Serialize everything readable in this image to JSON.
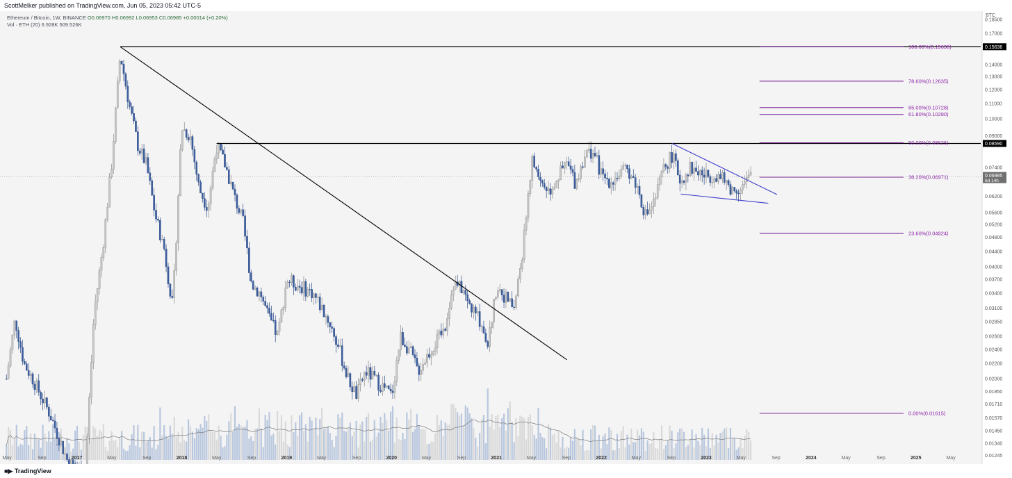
{
  "header": {
    "published": "ScottMelker published on TradingView.com, Jun 05, 2023 05:42 UTC-5",
    "symbol_line": "Ethereum / Bitcoin, 1W, BINANCE",
    "ohlc": "O0.06970 H0.06992 L0.06953 C0.06985 +0.00014 (+0.20%)",
    "volume_line": "Vol · ETH (20)",
    "volume_values": "6.928K 509.526K"
  },
  "footer": {
    "brand": "TradingView"
  },
  "chart_data": {
    "type": "candlestick",
    "symbol": "Ethereum / Bitcoin",
    "timeframe": "1W",
    "exchange": "BINANCE",
    "price_axis_label": "BTC",
    "price_ticks": [
      "0.18500",
      "0.17000",
      "0.15636",
      "0.14000",
      "0.13000",
      "0.12000",
      "0.11000",
      "0.10000",
      "0.09000",
      "0.08590",
      "0.07400",
      "0.06985",
      "0.06200",
      "0.05600",
      "0.05200",
      "0.04800",
      "0.04400",
      "0.04000",
      "0.03700",
      "0.03400",
      "0.03100",
      "0.02850",
      "0.02600",
      "0.02400",
      "0.02200",
      "0.02000",
      "0.01850",
      "0.01710",
      "0.01570",
      "0.01450",
      "0.01340",
      "0.01245"
    ],
    "price_tick_values": [
      0.185,
      0.17,
      0.15636,
      0.14,
      0.13,
      0.12,
      0.11,
      0.1,
      0.09,
      0.0859,
      0.074,
      0.06985,
      0.062,
      0.056,
      0.052,
      0.048,
      0.044,
      0.04,
      0.037,
      0.034,
      0.031,
      0.0285,
      0.026,
      0.024,
      0.022,
      0.02,
      0.0185,
      0.0171,
      0.0157,
      0.0145,
      0.0134,
      0.01245
    ],
    "time_ticks": [
      "May",
      "Sep",
      "2017",
      "May",
      "Sep",
      "2018",
      "May",
      "Sep",
      "2019",
      "May",
      "Sep",
      "2020",
      "May",
      "Sep",
      "2021",
      "May",
      "Sep",
      "2022",
      "May",
      "Sep",
      "2023",
      "May",
      "Sep",
      "2024",
      "May",
      "Sep",
      "2025",
      "May"
    ],
    "current_price": "0.06985",
    "countdown": "6d 14h",
    "highlight_levels": [
      {
        "label": "0.15636",
        "value": 0.15636
      },
      {
        "label": "0.08590",
        "value": 0.0859
      }
    ],
    "fib_levels": [
      {
        "label": "100.00%(0.15636)",
        "value": 0.15636
      },
      {
        "label": "78.60%(0.12635)",
        "value": 0.12635
      },
      {
        "label": "65.00%(0.10728)",
        "value": 0.10728
      },
      {
        "label": "61.80%(0.10280)",
        "value": 0.1028
      },
      {
        "label": "50.00%(0.08625)",
        "value": 0.08625
      },
      {
        "label": "38.20%(0.06971)",
        "value": 0.06971
      },
      {
        "label": "23.60%(0.04924)",
        "value": 0.04924
      },
      {
        "label": "0.00%(0.01615)",
        "value": 0.01615
      }
    ],
    "horizontal_lines": [
      {
        "from": "2017-06",
        "price": 0.15636
      },
      {
        "from": "2018-05",
        "price": 0.0859
      }
    ],
    "trend_lines": [
      {
        "from": [
          "2017-06",
          0.15636
        ],
        "to": [
          "2021-09",
          0.0225
        ],
        "color": "#000000"
      },
      {
        "from": [
          "2022-09",
          0.0859
        ],
        "to": [
          "2023-09",
          0.0626
        ],
        "color": "#3e3ecc"
      },
      {
        "from": [
          "2022-10",
          0.0628
        ],
        "to": [
          "2023-08",
          0.0593
        ],
        "color": "#3e3ecc"
      }
    ],
    "price_path": [
      [
        "2016-05",
        0.02
      ],
      [
        "2016-06",
        0.029
      ],
      [
        "2016-07",
        0.022
      ],
      [
        "2016-08",
        0.02
      ],
      [
        "2016-10",
        0.016
      ],
      [
        "2016-12",
        0.012
      ],
      [
        "2017-02",
        0.011
      ],
      [
        "2017-03",
        0.03
      ],
      [
        "2017-04",
        0.045
      ],
      [
        "2017-05",
        0.075
      ],
      [
        "2017-06",
        0.15
      ],
      [
        "2017-07",
        0.11
      ],
      [
        "2017-08",
        0.085
      ],
      [
        "2017-09",
        0.075
      ],
      [
        "2017-10",
        0.055
      ],
      [
        "2017-11",
        0.045
      ],
      [
        "2017-12",
        0.031
      ],
      [
        "2018-01",
        0.095
      ],
      [
        "2018-02",
        0.09
      ],
      [
        "2018-03",
        0.065
      ],
      [
        "2018-04",
        0.058
      ],
      [
        "2018-05",
        0.085
      ],
      [
        "2018-06",
        0.075
      ],
      [
        "2018-07",
        0.062
      ],
      [
        "2018-08",
        0.053
      ],
      [
        "2018-09",
        0.036
      ],
      [
        "2018-10",
        0.034
      ],
      [
        "2018-11",
        0.029
      ],
      [
        "2018-12",
        0.026
      ],
      [
        "2019-01",
        0.037
      ],
      [
        "2019-02",
        0.036
      ],
      [
        "2019-03",
        0.035
      ],
      [
        "2019-04",
        0.034
      ],
      [
        "2019-05",
        0.031
      ],
      [
        "2019-06",
        0.028
      ],
      [
        "2019-07",
        0.024
      ],
      [
        "2019-08",
        0.02
      ],
      [
        "2019-09",
        0.018
      ],
      [
        "2019-10",
        0.021
      ],
      [
        "2019-11",
        0.02
      ],
      [
        "2019-12",
        0.019
      ],
      [
        "2020-01",
        0.018
      ],
      [
        "2020-02",
        0.026
      ],
      [
        "2020-03",
        0.024
      ],
      [
        "2020-04",
        0.021
      ],
      [
        "2020-05",
        0.023
      ],
      [
        "2020-06",
        0.025
      ],
      [
        "2020-07",
        0.027
      ],
      [
        "2020-08",
        0.036
      ],
      [
        "2020-09",
        0.035
      ],
      [
        "2020-10",
        0.031
      ],
      [
        "2020-11",
        0.029
      ],
      [
        "2020-12",
        0.025
      ],
      [
        "2021-01",
        0.036
      ],
      [
        "2021-02",
        0.033
      ],
      [
        "2021-03",
        0.031
      ],
      [
        "2021-04",
        0.045
      ],
      [
        "2021-05",
        0.078
      ],
      [
        "2021-06",
        0.068
      ],
      [
        "2021-07",
        0.064
      ],
      [
        "2021-08",
        0.07
      ],
      [
        "2021-09",
        0.076
      ],
      [
        "2021-10",
        0.067
      ],
      [
        "2021-11",
        0.08
      ],
      [
        "2021-12",
        0.082
      ],
      [
        "2022-01",
        0.07
      ],
      [
        "2022-02",
        0.068
      ],
      [
        "2022-03",
        0.071
      ],
      [
        "2022-04",
        0.073
      ],
      [
        "2022-05",
        0.066
      ],
      [
        "2022-06",
        0.055
      ],
      [
        "2022-07",
        0.06
      ],
      [
        "2022-08",
        0.073
      ],
      [
        "2022-09",
        0.08
      ],
      [
        "2022-10",
        0.068
      ],
      [
        "2022-11",
        0.074
      ],
      [
        "2022-12",
        0.072
      ],
      [
        "2023-01",
        0.07
      ],
      [
        "2023-02",
        0.071
      ],
      [
        "2023-03",
        0.068
      ],
      [
        "2023-04",
        0.064
      ],
      [
        "2023-05",
        0.066
      ],
      [
        "2023-06",
        0.06985
      ]
    ],
    "volume": {
      "label": "Vol · ETH (20)",
      "values": [
        "6.928K",
        "509.526K"
      ]
    },
    "grid": false
  }
}
